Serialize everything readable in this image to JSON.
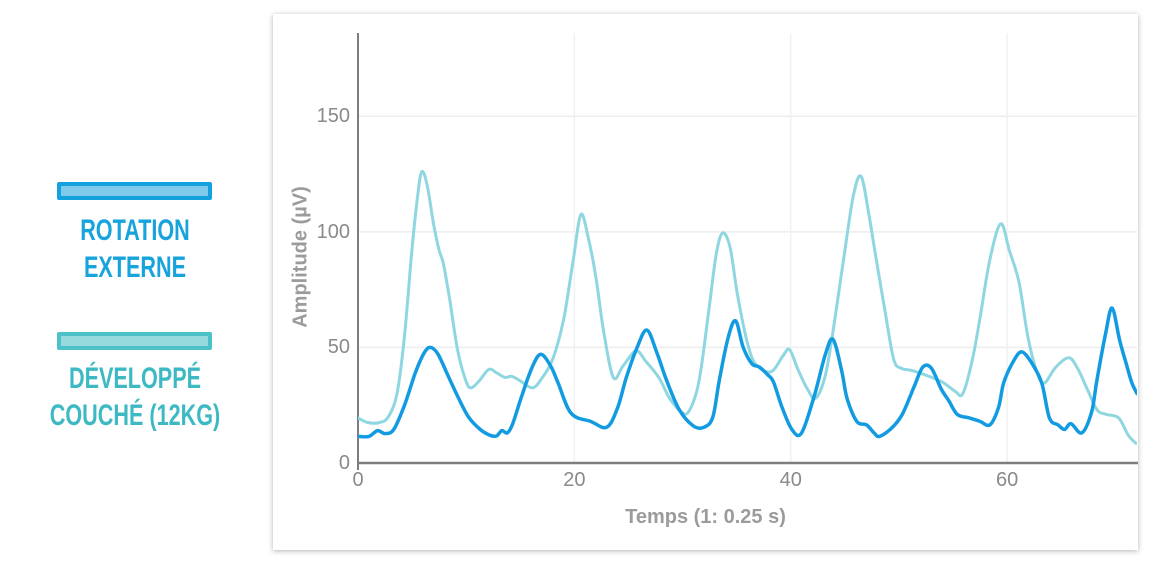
{
  "page": {
    "background": "#ffffff"
  },
  "legend": {
    "items": [
      {
        "id": "rotation-externe",
        "line1": "ROTATION",
        "line2": "EXTERNE",
        "swatch_border_color": "#14a2de",
        "swatch_fill_color": "#7fc9ea",
        "text_color": "#17a3dc"
      },
      {
        "id": "developpe-couche",
        "line1": "DÉVELOPPÉ",
        "line2": "COUCHÉ (12KG)",
        "swatch_border_color": "#4cc1c7",
        "swatch_fill_color": "#96dadd",
        "text_color": "#3db9c3"
      }
    ]
  },
  "chart_data": {
    "type": "line",
    "title": "",
    "xlabel": "Temps (1: 0.25 s)",
    "ylabel": "Amplitude (µV)",
    "xlim": [
      0,
      72
    ],
    "ylim": [
      0,
      186
    ],
    "x_ticks": [
      0,
      20,
      40,
      60
    ],
    "y_ticks": [
      0,
      50,
      100,
      150
    ],
    "grid": true,
    "legend_position": "left",
    "axis_color": "#7d7d7d",
    "grid_color": "#ededed",
    "vgrid_color": "#f1f1f1",
    "tick_label_color": "#8a8a8a",
    "axis_title_color": "#9b9b9b",
    "series": [
      {
        "name": "Développé couché (12kg)",
        "color": "#8fd7e0",
        "stroke_width": 3,
        "points": [
          [
            0,
            19.5
          ],
          [
            0.9,
            17.5
          ],
          [
            2,
            17.5
          ],
          [
            2.8,
            20
          ],
          [
            3.6,
            30
          ],
          [
            4.3,
            55
          ],
          [
            5,
            93
          ],
          [
            5.5,
            115
          ],
          [
            5.9,
            126
          ],
          [
            6.4,
            120
          ],
          [
            7,
            103
          ],
          [
            7.5,
            92
          ],
          [
            7.9,
            86
          ],
          [
            8.5,
            70
          ],
          [
            9.2,
            49
          ],
          [
            9.9,
            36.5
          ],
          [
            10.4,
            32.5
          ],
          [
            11.2,
            35.5
          ],
          [
            12.1,
            40.5
          ],
          [
            12.8,
            39
          ],
          [
            13.6,
            37
          ],
          [
            14.2,
            37.5
          ],
          [
            15,
            35.5
          ],
          [
            16.1,
            32.5
          ],
          [
            16.9,
            36
          ],
          [
            18,
            45
          ],
          [
            19,
            62
          ],
          [
            19.9,
            88
          ],
          [
            20.6,
            107.5
          ],
          [
            21.3,
            97
          ],
          [
            22,
            80
          ],
          [
            22.7,
            57
          ],
          [
            23.6,
            37
          ],
          [
            24.5,
            42
          ],
          [
            25.7,
            48.5
          ],
          [
            26.6,
            44
          ],
          [
            27.8,
            37
          ],
          [
            28.8,
            28
          ],
          [
            29.9,
            22
          ],
          [
            30.6,
            22.5
          ],
          [
            31.5,
            35
          ],
          [
            32.4,
            65
          ],
          [
            33.1,
            90
          ],
          [
            33.7,
            99.5
          ],
          [
            34.4,
            93
          ],
          [
            35.1,
            72
          ],
          [
            36.1,
            50
          ],
          [
            36.9,
            42
          ],
          [
            38.2,
            39.5
          ],
          [
            39.3,
            46.5
          ],
          [
            39.9,
            49
          ],
          [
            40.7,
            40
          ],
          [
            41.6,
            31.5
          ],
          [
            42.3,
            28
          ],
          [
            43.2,
            38
          ],
          [
            44,
            60
          ],
          [
            45,
            92
          ],
          [
            45.8,
            116
          ],
          [
            46.5,
            124
          ],
          [
            47.2,
            108
          ],
          [
            47.9,
            88
          ],
          [
            48.7,
            66
          ],
          [
            49.5,
            45
          ],
          [
            50.2,
            41
          ],
          [
            51.2,
            40
          ],
          [
            52.5,
            38
          ],
          [
            54,
            35
          ],
          [
            55.2,
            31
          ],
          [
            55.9,
            30
          ],
          [
            56.8,
            45
          ],
          [
            57.5,
            63
          ],
          [
            58.4,
            88
          ],
          [
            59.4,
            103.5
          ],
          [
            60.2,
            92
          ],
          [
            61.1,
            78
          ],
          [
            61.9,
            55
          ],
          [
            62.7,
            40
          ],
          [
            63.4,
            34.5
          ],
          [
            64.5,
            41.5
          ],
          [
            65.7,
            45.5
          ],
          [
            66.5,
            41
          ],
          [
            67.4,
            32
          ],
          [
            68.3,
            23
          ],
          [
            69.2,
            21
          ],
          [
            70.3,
            19.5
          ],
          [
            71.2,
            12
          ],
          [
            71.9,
            8.5
          ]
        ]
      },
      {
        "name": "Rotation externe",
        "color": "#129be1",
        "stroke_width": 3.5,
        "points": [
          [
            0,
            11.5
          ],
          [
            1,
            11.5
          ],
          [
            1.8,
            14
          ],
          [
            2.5,
            12.7
          ],
          [
            3.3,
            14.5
          ],
          [
            4.3,
            25
          ],
          [
            5.3,
            39
          ],
          [
            6.1,
            47.5
          ],
          [
            6.7,
            50
          ],
          [
            7.4,
            47
          ],
          [
            8.3,
            38
          ],
          [
            9.2,
            29
          ],
          [
            10.2,
            20
          ],
          [
            11.3,
            14.5
          ],
          [
            12.2,
            12
          ],
          [
            12.8,
            11.7
          ],
          [
            13.3,
            14
          ],
          [
            13.8,
            13
          ],
          [
            14.3,
            17
          ],
          [
            15.1,
            28.5
          ],
          [
            16.1,
            41.5
          ],
          [
            16.9,
            47
          ],
          [
            17.8,
            42
          ],
          [
            18.5,
            34.5
          ],
          [
            19.7,
            21.5
          ],
          [
            21.5,
            18
          ],
          [
            23,
            15.5
          ],
          [
            24,
            24
          ],
          [
            24.8,
            37
          ],
          [
            25.8,
            50
          ],
          [
            26.7,
            57.5
          ],
          [
            27.6,
            48
          ],
          [
            28.5,
            36
          ],
          [
            29.7,
            23
          ],
          [
            31,
            16
          ],
          [
            32,
            15.5
          ],
          [
            32.8,
            20
          ],
          [
            33.4,
            36
          ],
          [
            34.2,
            54
          ],
          [
            34.9,
            61.5
          ],
          [
            35.6,
            50
          ],
          [
            36.4,
            43
          ],
          [
            37.1,
            41.5
          ],
          [
            37.9,
            38
          ],
          [
            38.4,
            35
          ],
          [
            39.2,
            24
          ],
          [
            40.1,
            14.5
          ],
          [
            41,
            13
          ],
          [
            42.2,
            29.5
          ],
          [
            43.2,
            47
          ],
          [
            43.9,
            53.5
          ],
          [
            44.7,
            40
          ],
          [
            45.2,
            28
          ],
          [
            46.1,
            18
          ],
          [
            47,
            16.5
          ],
          [
            47.7,
            13
          ],
          [
            48.2,
            11.5
          ],
          [
            49.3,
            15
          ],
          [
            50.3,
            21
          ],
          [
            51.4,
            33
          ],
          [
            52.2,
            41.5
          ],
          [
            53,
            41
          ],
          [
            53.9,
            32
          ],
          [
            54.6,
            27
          ],
          [
            55.4,
            21
          ],
          [
            56.5,
            19.5
          ],
          [
            57.5,
            18
          ],
          [
            58.4,
            16.5
          ],
          [
            59.2,
            24
          ],
          [
            59.7,
            35
          ],
          [
            60.7,
            45
          ],
          [
            61.4,
            48
          ],
          [
            62.3,
            43
          ],
          [
            63.2,
            34.5
          ],
          [
            63.9,
            19.5
          ],
          [
            64.7,
            16.5
          ],
          [
            65.3,
            14.5
          ],
          [
            65.9,
            17
          ],
          [
            66.9,
            13
          ],
          [
            67.8,
            22
          ],
          [
            68.3,
            36
          ],
          [
            69.1,
            56
          ],
          [
            69.7,
            67
          ],
          [
            70.4,
            53
          ],
          [
            71,
            43
          ],
          [
            71.5,
            35
          ],
          [
            72,
            30
          ]
        ]
      }
    ]
  }
}
